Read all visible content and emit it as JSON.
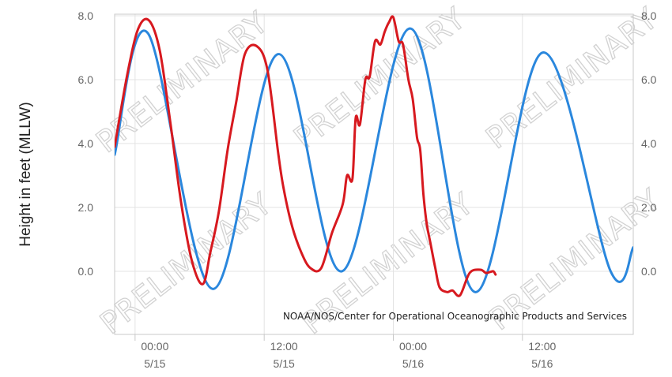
{
  "chart_data": {
    "type": "line",
    "ylabel": "Height in feet (MLLW)",
    "ylim": [
      -2.0,
      8.0
    ],
    "y_ticks": [
      "0.0",
      "2.0",
      "4.0",
      "6.0",
      "8.0"
    ],
    "y_tick_values": [
      0,
      2,
      4,
      6,
      8
    ],
    "x_range_hours": [
      -1.9,
      46.3
    ],
    "x_ticks": [
      {
        "hours": 0,
        "time": "00:00",
        "date": "5/15"
      },
      {
        "hours": 12,
        "time": "12:00",
        "date": "5/15"
      },
      {
        "hours": 24,
        "time": "00:00",
        "date": "5/16"
      },
      {
        "hours": 36,
        "time": "12:00",
        "date": "5/16"
      }
    ],
    "credit": "NOAA/NOS/Center for Operational Oceanographic Products and Services",
    "watermark": "PRELIMINARY",
    "grid": true,
    "series": [
      {
        "color": "#2a87dd",
        "x": [
          -1.9,
          1.2,
          7.2,
          13.3,
          19.2,
          25.6,
          31.6,
          37.9,
          44.2,
          46.3
        ],
        "y": [
          3.65,
          7.45,
          -0.55,
          6.8,
          0.0,
          7.6,
          -0.65,
          6.85,
          0.0,
          0.75
        ]
      },
      {
        "color": "#d7191f",
        "x": [
          -1.9,
          -0.7,
          0.3,
          1.3,
          2.3,
          3.3,
          4.3,
          5.3,
          6.3,
          7.0,
          7.8,
          8.6,
          9.4,
          10.2,
          11.3,
          12.3,
          13.3,
          13.8,
          14.6,
          15.5,
          16.3,
          17.3,
          18.3,
          19.3,
          19.7,
          20.2,
          20.5,
          20.9,
          21.4,
          21.8,
          22.3,
          22.8,
          23.2,
          23.6,
          24.0,
          24.5,
          24.9,
          25.4,
          25.8,
          26.2,
          26.5,
          26.8,
          27.1,
          27.5,
          27.9,
          28.3,
          29.0,
          29.5,
          30.2,
          31.1,
          32.1,
          32.6,
          33.0,
          33.3,
          33.5
        ],
        "y": [
          3.9,
          6.2,
          7.6,
          7.85,
          6.9,
          4.6,
          2.1,
          0.3,
          -0.4,
          0.6,
          1.9,
          3.8,
          5.3,
          6.8,
          7.05,
          6.3,
          3.7,
          2.6,
          1.4,
          0.55,
          0.1,
          0.1,
          1.2,
          2.1,
          3.0,
          2.9,
          4.8,
          4.6,
          6.0,
          6.1,
          7.2,
          7.1,
          7.5,
          7.8,
          7.95,
          7.2,
          7.1,
          6.0,
          5.4,
          4.2,
          3.8,
          2.4,
          1.5,
          0.8,
          0.1,
          -0.5,
          -0.65,
          -0.6,
          -0.75,
          -0.05,
          0.05,
          -0.05,
          -0.02,
          0.0,
          -0.1
        ]
      }
    ]
  }
}
